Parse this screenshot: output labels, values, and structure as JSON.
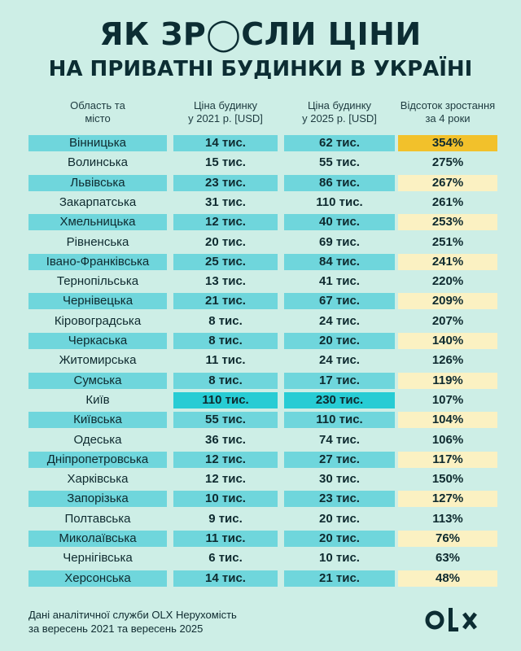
{
  "title": {
    "line1": "ЯК ЗР◯СЛИ ЦІНИ",
    "line2": "НА ПРИВАТНІ БУДИНКИ В УКРАЇНІ"
  },
  "headers": {
    "region": "Область та\nмісто",
    "price2021": "Ціна будинку\nу 2021 р. [USD]",
    "price2025": "Ціна будинку\nу 2025 р. [USD]",
    "growth": "Відсоток зростання\nза 4 роки"
  },
  "colors": {
    "background": "#cdeee6",
    "row_band": "#6fd6dc",
    "kyiv_highlight": "#28ccd4",
    "pct_light": "#fbf1c2",
    "pct_top": "#f2c12b",
    "text_dark": "#0e2a2f"
  },
  "chart_data": {
    "type": "table",
    "columns": [
      "Область та місто",
      "Ціна будинку у 2021 р. [USD]",
      "Ціна будинку у 2025 р. [USD]",
      "Відсоток зростання за 4 роки"
    ],
    "rows": [
      {
        "region": "Вінницька",
        "p2021": "14 тис.",
        "p2025": "62 тис.",
        "growth": "354%"
      },
      {
        "region": "Волинська",
        "p2021": "15 тис.",
        "p2025": "55 тис.",
        "growth": "275%"
      },
      {
        "region": "Львівська",
        "p2021": "23 тис.",
        "p2025": "86 тис.",
        "growth": "267%"
      },
      {
        "region": "Закарпатська",
        "p2021": "31 тис.",
        "p2025": "110 тис.",
        "growth": "261%"
      },
      {
        "region": "Хмельницька",
        "p2021": "12 тис.",
        "p2025": "40 тис.",
        "growth": "253%"
      },
      {
        "region": "Рівненська",
        "p2021": "20 тис.",
        "p2025": "69 тис.",
        "growth": "251%"
      },
      {
        "region": "Івано-Франківська",
        "p2021": "25 тис.",
        "p2025": "84 тис.",
        "growth": "241%"
      },
      {
        "region": "Тернопільська",
        "p2021": "13 тис.",
        "p2025": "41 тис.",
        "growth": "220%"
      },
      {
        "region": "Чернівецька",
        "p2021": "21 тис.",
        "p2025": "67 тис.",
        "growth": "209%"
      },
      {
        "region": "Кіровоградська",
        "p2021": "8 тис.",
        "p2025": "24 тис.",
        "growth": "207%"
      },
      {
        "region": "Черкаська",
        "p2021": "8 тис.",
        "p2025": "20 тис.",
        "growth": "140%"
      },
      {
        "region": "Житомирська",
        "p2021": "11 тис.",
        "p2025": "24 тис.",
        "growth": "126%"
      },
      {
        "region": "Сумська",
        "p2021": "8 тис.",
        "p2025": "17 тис.",
        "growth": "119%"
      },
      {
        "region": "Київ",
        "p2021": "110 тис.",
        "p2025": "230 тис.",
        "growth": "107%",
        "highlight": true
      },
      {
        "region": "Київська",
        "p2021": "55 тис.",
        "p2025": "110 тис.",
        "growth": "104%"
      },
      {
        "region": "Одеська",
        "p2021": "36 тис.",
        "p2025": "74 тис.",
        "growth": "106%"
      },
      {
        "region": "Дніпропетровська",
        "p2021": "12 тис.",
        "p2025": "27 тис.",
        "growth": "117%"
      },
      {
        "region": "Харківська",
        "p2021": "12 тис.",
        "p2025": "30 тис.",
        "growth": "150%"
      },
      {
        "region": "Запорізька",
        "p2021": "10 тис.",
        "p2025": "23 тис.",
        "growth": "127%"
      },
      {
        "region": "Полтавська",
        "p2021": "9 тис.",
        "p2025": "20 тис.",
        "growth": "113%"
      },
      {
        "region": "Миколаївська",
        "p2021": "11 тис.",
        "p2025": "20 тис.",
        "growth": "76%"
      },
      {
        "region": "Чернігівська",
        "p2021": "6 тис.",
        "p2025": "10 тис.",
        "growth": "63%"
      },
      {
        "region": "Херсонська",
        "p2021": "14 тис.",
        "p2025": "21 тис.",
        "growth": "48%"
      }
    ]
  },
  "footer": {
    "line1": "Дані аналітичної служби OLX Нерухомість",
    "line2": "за вересень 2021 та вересень 2025"
  },
  "logo": {
    "text": "OLX",
    "icon": "olx-logo-icon"
  }
}
